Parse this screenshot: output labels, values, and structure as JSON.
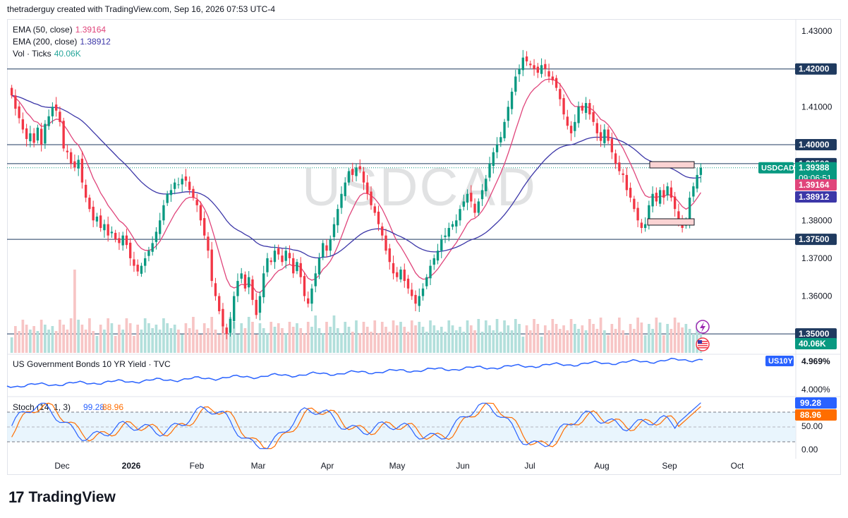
{
  "header": {
    "text": "thetraderguy created with TradingView.com, Sep 16, 2026 07:53 UTC-4"
  },
  "footer": {
    "brand": "TradingView"
  },
  "watermark": "USDCAD",
  "legend": {
    "ema50": {
      "label": "EMA (50, close)",
      "value": "1.39164",
      "color": "#e0457b"
    },
    "ema200": {
      "label": "EMA (200, close)",
      "value": "1.38912",
      "color": "#3c37a8"
    },
    "vol": {
      "label": "Vol · Ticks",
      "value": "40.06K",
      "color": "#26a69a"
    }
  },
  "price_badges": {
    "symbol": "USDCAD",
    "price": "1.39388",
    "countdown": "09:06:51",
    "ema50": "1.39164",
    "ema200": "1.38912",
    "vol": "40.06K"
  },
  "level_badges": [
    "1.42000",
    "1.40000",
    "1.39500",
    "1.37500",
    "1.35000"
  ],
  "yield_panel": {
    "title": "US Government Bonds 10 YR Yield · TVC",
    "symbol": "US10Y",
    "value": "4.969%",
    "tick": "4.000%"
  },
  "stoch_panel": {
    "label": "Stoch (14, 1, 3)",
    "k": "99.28",
    "d": "88.96",
    "ticks": [
      "50.00",
      "0.00"
    ]
  },
  "chart_data": {
    "type": "candlestick",
    "symbol": "USDCAD",
    "price_axis": {
      "ticks": [
        1.43,
        1.41,
        1.38,
        1.37,
        1.36
      ],
      "range": [
        1.345,
        1.433
      ]
    },
    "time_axis": {
      "labels": [
        "Dec",
        "2026",
        "Feb",
        "Mar",
        "Apr",
        "May",
        "Jun",
        "Jul",
        "Aug",
        "Sep",
        "Oct"
      ]
    },
    "horizontal_levels": [
      1.42,
      1.4,
      1.395,
      1.375,
      1.35
    ],
    "dotted_level": 1.3939,
    "candles_close": [
      1.413,
      1.4095,
      1.407,
      1.404,
      1.4015,
      1.403,
      1.4005,
      1.4045,
      1.4,
      1.4055,
      1.4075,
      1.41,
      1.409,
      1.406,
      1.399,
      1.398,
      1.395,
      1.394,
      1.396,
      1.39,
      1.386,
      1.383,
      1.38,
      1.381,
      1.378,
      1.379,
      1.376,
      1.377,
      1.375,
      1.374,
      1.376,
      1.3735,
      1.37,
      1.368,
      1.3665,
      1.368,
      1.37,
      1.372,
      1.374,
      1.377,
      1.38,
      1.384,
      1.387,
      1.388,
      1.39,
      1.3895,
      1.391,
      1.3905,
      1.388,
      1.386,
      1.384,
      1.38,
      1.376,
      1.372,
      1.364,
      1.36,
      1.356,
      1.352,
      1.35,
      1.354,
      1.36,
      1.364,
      1.366,
      1.362,
      1.365,
      1.359,
      1.355,
      1.36,
      1.366,
      1.37,
      1.369,
      1.372,
      1.371,
      1.369,
      1.372,
      1.37,
      1.366,
      1.369,
      1.365,
      1.36,
      1.358,
      1.362,
      1.366,
      1.37,
      1.374,
      1.372,
      1.375,
      1.379,
      1.383,
      1.387,
      1.39,
      1.393,
      1.392,
      1.394,
      1.3935,
      1.39,
      1.387,
      1.384,
      1.382,
      1.379,
      1.376,
      1.372,
      1.369,
      1.366,
      1.365,
      1.367,
      1.364,
      1.362,
      1.36,
      1.358,
      1.36,
      1.362,
      1.365,
      1.368,
      1.37,
      1.372,
      1.375,
      1.376,
      1.378,
      1.379,
      1.38,
      1.383,
      1.385,
      1.387,
      1.385,
      1.382,
      1.385,
      1.388,
      1.391,
      1.395,
      1.398,
      1.4,
      1.402,
      1.406,
      1.41,
      1.414,
      1.418,
      1.42,
      1.423,
      1.422,
      1.421,
      1.42,
      1.419,
      1.421,
      1.42,
      1.418,
      1.417,
      1.415,
      1.412,
      1.408,
      1.405,
      1.403,
      1.406,
      1.41,
      1.409,
      1.411,
      1.408,
      1.406,
      1.403,
      1.401,
      1.404,
      1.401,
      1.398,
      1.395,
      1.393,
      1.392,
      1.388,
      1.386,
      1.383,
      1.38,
      1.378,
      1.379,
      1.384,
      1.387,
      1.385,
      1.388,
      1.386,
      1.389,
      1.386,
      1.383,
      1.38,
      1.378,
      1.38,
      1.386,
      1.389,
      1.392,
      1.3939
    ]
  }
}
